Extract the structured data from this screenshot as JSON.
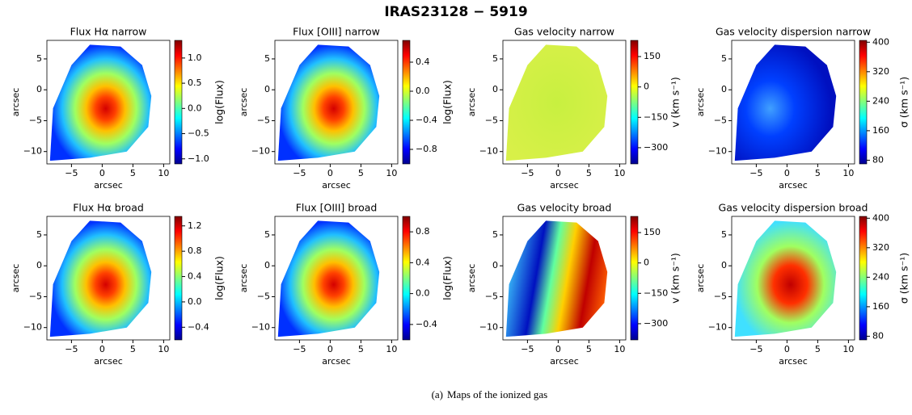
{
  "figure": {
    "title": "IRAS23128 − 5919",
    "caption_label": "(a)",
    "caption": "Maps of the ionized gas",
    "panels": [
      {
        "title": "Flux Hα narrow",
        "xlabel": "arcsec",
        "ylabel": "arcsec",
        "xlim": [
          -9,
          11
        ],
        "ylim": [
          -12,
          8
        ],
        "xticks": [
          {
            "value": -5,
            "label": "−5"
          },
          0,
          5,
          10
        ],
        "yticks": [
          5,
          0,
          {
            "value": -5,
            "label": "−5"
          },
          {
            "value": -10,
            "label": "−10"
          }
        ],
        "colorbar": {
          "label": "log(Flux)",
          "range": [
            -1.1,
            1.35
          ],
          "ticks": [
            {
              "value": 1,
              "label": "1.0"
            },
            0.5,
            {
              "value": 0,
              "label": "0.0"
            },
            {
              "value": -0.5,
              "label": "−0.5"
            },
            {
              "value": -1,
              "label": "−1.0"
            }
          ]
        }
      },
      {
        "title": "Flux [OIII] narrow",
        "xlabel": "arcsec",
        "ylabel": "arcsec",
        "xlim": [
          -9,
          11
        ],
        "ylim": [
          -12,
          8
        ],
        "xticks": [
          {
            "value": -5,
            "label": "−5"
          },
          0,
          5,
          10
        ],
        "yticks": [
          5,
          0,
          {
            "value": -5,
            "label": "−5"
          },
          {
            "value": -10,
            "label": "−10"
          }
        ],
        "colorbar": {
          "label": "log(Flux)",
          "range": [
            -1.0,
            0.7
          ],
          "ticks": [
            0.4,
            {
              "value": 0,
              "label": "0.0"
            },
            {
              "value": -0.4,
              "label": "−0.4"
            },
            {
              "value": -0.8,
              "label": "−0.8"
            }
          ]
        }
      },
      {
        "title": "Gas velocity narrow",
        "xlabel": "arcsec",
        "ylabel": "arcsec",
        "xlim": [
          -9,
          11
        ],
        "ylim": [
          -12,
          8
        ],
        "xticks": [
          {
            "value": -5,
            "label": "−5"
          },
          0,
          5,
          10
        ],
        "yticks": [
          5,
          0,
          {
            "value": -5,
            "label": "−5"
          },
          {
            "value": -10,
            "label": "−10"
          }
        ],
        "colorbar": {
          "label": "v (km s⁻¹)",
          "range": [
            -380,
            230
          ],
          "ticks": [
            150,
            0,
            {
              "value": -150,
              "label": "−150"
            },
            {
              "value": -300,
              "label": "−300"
            }
          ]
        }
      },
      {
        "title": "Gas velocity dispersion narrow",
        "xlabel": "arcsec",
        "ylabel": "arcsec",
        "xlim": [
          -9,
          11
        ],
        "ylim": [
          -12,
          8
        ],
        "xticks": [
          {
            "value": -5,
            "label": "−5"
          },
          0,
          5,
          10
        ],
        "yticks": [
          5,
          0,
          {
            "value": -5,
            "label": "−5"
          },
          {
            "value": -10,
            "label": "−10"
          }
        ],
        "colorbar": {
          "label": "σ (km s⁻¹)",
          "range": [
            70,
            405
          ],
          "ticks": [
            400,
            320,
            240,
            160,
            80
          ]
        }
      },
      {
        "title": "Flux Hα broad",
        "xlabel": "arcsec",
        "ylabel": "arcsec",
        "xlim": [
          -9,
          11
        ],
        "ylim": [
          -12,
          8
        ],
        "xticks": [
          {
            "value": -5,
            "label": "−5"
          },
          0,
          5,
          10
        ],
        "yticks": [
          5,
          0,
          {
            "value": -5,
            "label": "−5"
          },
          {
            "value": -10,
            "label": "−10"
          }
        ],
        "colorbar": {
          "label": "log(Flux)",
          "range": [
            -0.6,
            1.35
          ],
          "ticks": [
            1.2,
            0.8,
            0.4,
            {
              "value": 0,
              "label": "0.0"
            },
            {
              "value": -0.4,
              "label": "−0.4"
            }
          ]
        }
      },
      {
        "title": "Flux [OIII] broad",
        "xlabel": "arcsec",
        "ylabel": "arcsec",
        "xlim": [
          -9,
          11
        ],
        "ylim": [
          -12,
          8
        ],
        "xticks": [
          {
            "value": -5,
            "label": "−5"
          },
          0,
          5,
          10
        ],
        "yticks": [
          5,
          0,
          {
            "value": -5,
            "label": "−5"
          },
          {
            "value": -10,
            "label": "−10"
          }
        ],
        "colorbar": {
          "label": "log(Flux)",
          "range": [
            -0.6,
            1.0
          ],
          "ticks": [
            0.8,
            0.4,
            {
              "value": 0,
              "label": "0.0"
            },
            {
              "value": -0.4,
              "label": "−0.4"
            }
          ]
        }
      },
      {
        "title": "Gas velocity broad",
        "xlabel": "arcsec",
        "ylabel": "arcsec",
        "xlim": [
          -9,
          11
        ],
        "ylim": [
          -12,
          8
        ],
        "xticks": [
          {
            "value": -5,
            "label": "−5"
          },
          0,
          5,
          10
        ],
        "yticks": [
          5,
          0,
          {
            "value": -5,
            "label": "−5"
          },
          {
            "value": -10,
            "label": "−10"
          }
        ],
        "colorbar": {
          "label": "v (km s⁻¹)",
          "range": [
            -380,
            230
          ],
          "ticks": [
            150,
            0,
            {
              "value": -150,
              "label": "−150"
            },
            {
              "value": -300,
              "label": "−300"
            }
          ]
        }
      },
      {
        "title": "Gas velocity dispersion broad",
        "xlabel": "arcsec",
        "ylabel": "arcsec",
        "xlim": [
          -9,
          11
        ],
        "ylim": [
          -12,
          8
        ],
        "xticks": [
          {
            "value": -5,
            "label": "−5"
          },
          0,
          5,
          10
        ],
        "yticks": [
          5,
          0,
          {
            "value": -5,
            "label": "−5"
          },
          {
            "value": -10,
            "label": "−10"
          }
        ],
        "colorbar": {
          "label": "σ (km s⁻¹)",
          "range": [
            70,
            405
          ],
          "ticks": [
            400,
            320,
            240,
            160,
            80
          ]
        }
      }
    ]
  }
}
